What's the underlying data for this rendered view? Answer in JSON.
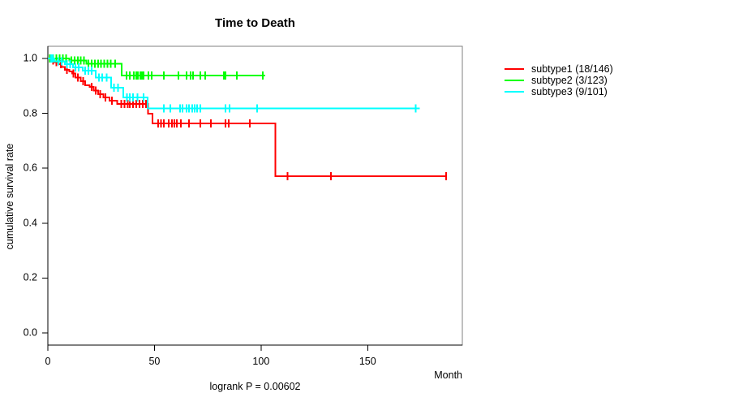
{
  "chart_data": {
    "type": "line",
    "style": "kaplan-meier-step",
    "title": "Time to Death",
    "xlabel": "Month",
    "ylabel": "cumulative survival rate",
    "annotation": "logrank P = 0.00602",
    "xlim": [
      0,
      194.4
    ],
    "ylim": [
      0,
      1.0
    ],
    "xticks": [
      "0",
      "50",
      "100",
      "150"
    ],
    "yticks": [
      "0.0",
      "0.2",
      "0.4",
      "0.6",
      "0.8",
      "1.0"
    ],
    "grid": false,
    "legend_position": "right-outside",
    "axis_color": "#000000",
    "box_color": "#808080",
    "series": [
      {
        "name": "subtype1 (18/146)",
        "color": "#FF0000",
        "end": 187,
        "steps": [
          [
            0,
            1.0
          ],
          [
            1.5,
            0.993
          ],
          [
            3,
            0.986
          ],
          [
            5,
            0.979
          ],
          [
            6.5,
            0.969
          ],
          [
            8,
            0.959
          ],
          [
            10,
            0.952
          ],
          [
            11.5,
            0.945
          ],
          [
            13,
            0.931
          ],
          [
            15.5,
            0.917
          ],
          [
            17.5,
            0.903
          ],
          [
            19.5,
            0.896
          ],
          [
            21.5,
            0.883
          ],
          [
            23.5,
            0.87
          ],
          [
            26,
            0.858
          ],
          [
            29,
            0.846
          ],
          [
            32.5,
            0.834
          ],
          [
            47,
            0.799
          ],
          [
            49,
            0.763
          ],
          [
            106.8,
            0.571
          ]
        ],
        "censors": [
          [
            2.5,
            0.993
          ],
          [
            4,
            0.986
          ],
          [
            6,
            0.979
          ],
          [
            9,
            0.959
          ],
          [
            12,
            0.945
          ],
          [
            14,
            0.931
          ],
          [
            16.5,
            0.917
          ],
          [
            20.5,
            0.896
          ],
          [
            22.5,
            0.883
          ],
          [
            24.5,
            0.87
          ],
          [
            27,
            0.858
          ],
          [
            30,
            0.846
          ],
          [
            34.5,
            0.834
          ],
          [
            36,
            0.834
          ],
          [
            37.5,
            0.834
          ],
          [
            38.5,
            0.834
          ],
          [
            40,
            0.834
          ],
          [
            41.5,
            0.834
          ],
          [
            43,
            0.834
          ],
          [
            44.5,
            0.834
          ],
          [
            46,
            0.834
          ],
          [
            51.7,
            0.763
          ],
          [
            53,
            0.763
          ],
          [
            54.4,
            0.763
          ],
          [
            56.7,
            0.763
          ],
          [
            58.2,
            0.763
          ],
          [
            59.3,
            0.763
          ],
          [
            60.5,
            0.763
          ],
          [
            62.4,
            0.763
          ],
          [
            66.2,
            0.763
          ],
          [
            71.5,
            0.763
          ],
          [
            76.4,
            0.763
          ],
          [
            83.3,
            0.763
          ],
          [
            84.8,
            0.763
          ],
          [
            94.7,
            0.763
          ],
          [
            112.5,
            0.571
          ],
          [
            132.7,
            0.571
          ],
          [
            186.7,
            0.571
          ]
        ]
      },
      {
        "name": "subtype2 (3/123)",
        "color": "#00FF00",
        "end": 102,
        "steps": [
          [
            0,
            1.0
          ],
          [
            10,
            0.992
          ],
          [
            18,
            0.981
          ],
          [
            34.6,
            0.938
          ]
        ],
        "censors": [
          [
            1,
            1.0
          ],
          [
            2.5,
            1.0
          ],
          [
            4,
            1.0
          ],
          [
            5.5,
            1.0
          ],
          [
            7,
            1.0
          ],
          [
            8.5,
            1.0
          ],
          [
            11,
            0.992
          ],
          [
            12.5,
            0.992
          ],
          [
            14,
            0.992
          ],
          [
            15.5,
            0.992
          ],
          [
            17,
            0.992
          ],
          [
            19,
            0.981
          ],
          [
            20.5,
            0.981
          ],
          [
            22,
            0.981
          ],
          [
            23.5,
            0.981
          ],
          [
            25,
            0.981
          ],
          [
            26.5,
            0.981
          ],
          [
            28,
            0.981
          ],
          [
            29.5,
            0.981
          ],
          [
            31.5,
            0.981
          ],
          [
            36.9,
            0.938
          ],
          [
            38.4,
            0.938
          ],
          [
            40.3,
            0.938
          ],
          [
            41.4,
            0.938
          ],
          [
            42.2,
            0.938
          ],
          [
            43.3,
            0.938
          ],
          [
            44.1,
            0.938
          ],
          [
            44.9,
            0.938
          ],
          [
            47.1,
            0.938
          ],
          [
            48.7,
            0.938
          ],
          [
            54.4,
            0.938
          ],
          [
            61.2,
            0.938
          ],
          [
            65,
            0.938
          ],
          [
            66.9,
            0.938
          ],
          [
            68.1,
            0.938
          ],
          [
            71.5,
            0.938
          ],
          [
            73.8,
            0.938
          ],
          [
            82.5,
            0.938
          ],
          [
            83.3,
            0.938
          ],
          [
            88.6,
            0.938
          ],
          [
            100.8,
            0.938
          ]
        ]
      },
      {
        "name": "subtype3 (9/101)",
        "color": "#00FFFF",
        "end": 174.5,
        "steps": [
          [
            0,
            1.0
          ],
          [
            3,
            0.99
          ],
          [
            8,
            0.98
          ],
          [
            11.8,
            0.968
          ],
          [
            16.3,
            0.956
          ],
          [
            22.4,
            0.931
          ],
          [
            29.7,
            0.893
          ],
          [
            35.4,
            0.858
          ],
          [
            46.8,
            0.818
          ]
        ],
        "censors": [
          [
            1.5,
            1.0
          ],
          [
            2.2,
            1.0
          ],
          [
            5,
            0.99
          ],
          [
            6.5,
            0.99
          ],
          [
            9,
            0.98
          ],
          [
            10.5,
            0.98
          ],
          [
            13,
            0.968
          ],
          [
            14.5,
            0.968
          ],
          [
            17.5,
            0.956
          ],
          [
            19,
            0.956
          ],
          [
            20.5,
            0.956
          ],
          [
            24,
            0.931
          ],
          [
            25.5,
            0.931
          ],
          [
            27.5,
            0.931
          ],
          [
            31,
            0.893
          ],
          [
            33,
            0.893
          ],
          [
            37,
            0.858
          ],
          [
            38.5,
            0.858
          ],
          [
            40,
            0.858
          ],
          [
            42,
            0.858
          ],
          [
            44.8,
            0.858
          ],
          [
            54.4,
            0.818
          ],
          [
            57.4,
            0.818
          ],
          [
            62,
            0.818
          ],
          [
            63.1,
            0.818
          ],
          [
            65,
            0.818
          ],
          [
            66.2,
            0.818
          ],
          [
            67.7,
            0.818
          ],
          [
            68.8,
            0.818
          ],
          [
            70,
            0.818
          ],
          [
            71.5,
            0.818
          ],
          [
            83.3,
            0.818
          ],
          [
            85.2,
            0.818
          ],
          [
            98.1,
            0.818
          ],
          [
            172.6,
            0.818
          ]
        ]
      }
    ]
  }
}
